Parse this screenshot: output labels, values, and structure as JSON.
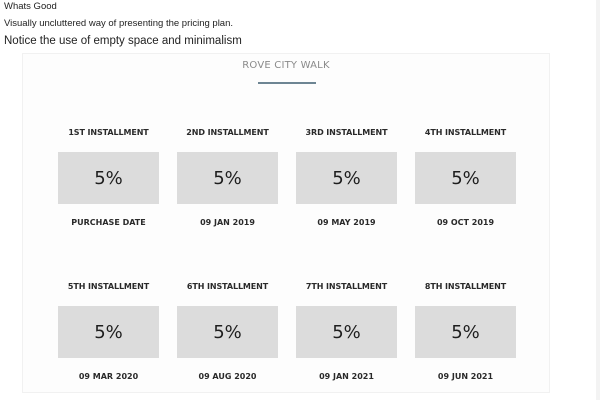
{
  "notes": {
    "line1": "Whats Good",
    "line2": "Visually uncluttered way of presenting the pricing plan.",
    "line3": "Notice the use of empty space and minimalism"
  },
  "plan": {
    "title": "ROVE CITY WALK",
    "installments": [
      {
        "label": "1ST INSTALLMENT",
        "percent": "5%",
        "date": "PURCHASE DATE"
      },
      {
        "label": "2ND INSTALLMENT",
        "percent": "5%",
        "date": "09 JAN 2019"
      },
      {
        "label": "3RD INSTALLMENT",
        "percent": "5%",
        "date": "09 MAY 2019"
      },
      {
        "label": "4TH INSTALLMENT",
        "percent": "5%",
        "date": "09 OCT 2019"
      },
      {
        "label": "5TH INSTALLMENT",
        "percent": "5%",
        "date": "09 MAR 2020"
      },
      {
        "label": "6TH INSTALLMENT",
        "percent": "5%",
        "date": "09 AUG 2020"
      },
      {
        "label": "7TH INSTALLMENT",
        "percent": "5%",
        "date": "09 JAN 2021"
      },
      {
        "label": "8TH INSTALLMENT",
        "percent": "5%",
        "date": "09 JUN 2021"
      }
    ]
  },
  "colors": {
    "box_background": "#dcdcdc",
    "title_rule": "#6d8593",
    "title_text": "#8a8a8a"
  }
}
